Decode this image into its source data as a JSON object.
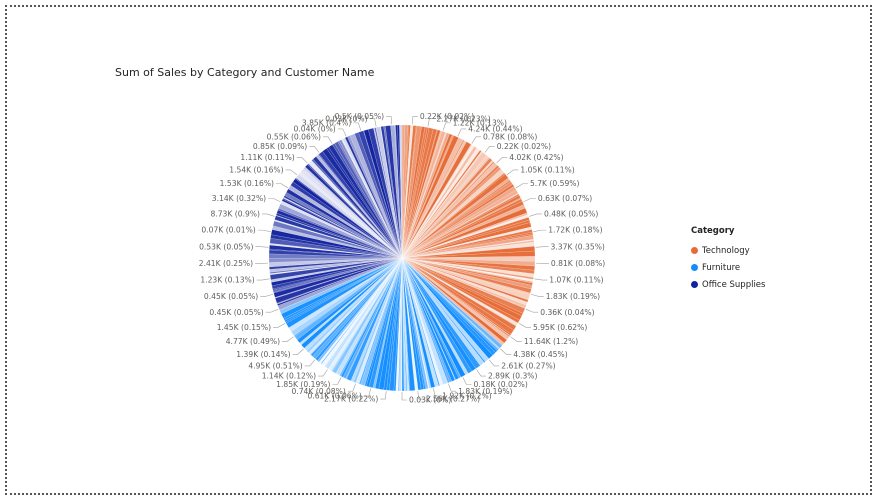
{
  "chart_data": {
    "type": "pie",
    "title": "Sum of Sales by Category and Customer Name",
    "legend": {
      "title": "Category",
      "placement": "right",
      "entries": [
        {
          "name": "Technology",
          "color": "#E66C37"
        },
        {
          "name": "Furniture",
          "color": "#118DFF"
        },
        {
          "name": "Office Supplies",
          "color": "#12239E"
        }
      ]
    },
    "category_shares": [
      {
        "category": "Technology",
        "percent": 36.4
      },
      {
        "category": "Furniture",
        "percent": 32.2
      },
      {
        "category": "Office Supplies",
        "percent": 31.4
      }
    ],
    "slice_labels": [
      {
        "category": "Technology",
        "value": "0.22K",
        "percent": "0.02%",
        "text": "0.22K (0.02%)"
      },
      {
        "category": "Technology",
        "value": "2.27K",
        "percent": "0.23%",
        "text": "2.27K (0.23%)"
      },
      {
        "category": "Technology",
        "value": "1.22K",
        "percent": "0.13%",
        "text": "1.22K (0.13%)"
      },
      {
        "category": "Technology",
        "value": "4.24K",
        "percent": "0.44%",
        "text": "4.24K (0.44%)"
      },
      {
        "category": "Technology",
        "value": "0.78K",
        "percent": "0.08%",
        "text": "0.78K (0.08%)"
      },
      {
        "category": "Technology",
        "value": "0.22K",
        "percent": "0.02%",
        "text": "0.22K (0.02%)"
      },
      {
        "category": "Technology",
        "value": "4.02K",
        "percent": "0.42%",
        "text": "4.02K (0.42%)"
      },
      {
        "category": "Technology",
        "value": "1.05K",
        "percent": "0.11%",
        "text": "1.05K (0.11%)"
      },
      {
        "category": "Technology",
        "value": "5.7K",
        "percent": "0.59%",
        "text": "5.7K (0.59%)"
      },
      {
        "category": "Technology",
        "value": "0.63K",
        "percent": "0.07%",
        "text": "0.63K (0.07%)"
      },
      {
        "category": "Technology",
        "value": "0.48K",
        "percent": "0.05%",
        "text": "0.48K (0.05%)"
      },
      {
        "category": "Technology",
        "value": "1.72K",
        "percent": "0.18%",
        "text": "1.72K (0.18%)"
      },
      {
        "category": "Technology",
        "value": "3.37K",
        "percent": "0.35%",
        "text": "3.37K (0.35%)"
      },
      {
        "category": "Technology",
        "value": "0.81K",
        "percent": "0.08%",
        "text": "0.81K (0.08%)"
      },
      {
        "category": "Technology",
        "value": "1.07K",
        "percent": "0.11%",
        "text": "1.07K (0.11%)"
      },
      {
        "category": "Technology",
        "value": "1.83K",
        "percent": "0.19%",
        "text": "1.83K (0.19%)"
      },
      {
        "category": "Technology",
        "value": "0.36K",
        "percent": "0.04%",
        "text": "0.36K (0.04%)"
      },
      {
        "category": "Technology",
        "value": "5.95K",
        "percent": "0.62%",
        "text": "5.95K (0.62%)"
      },
      {
        "category": "Technology",
        "value": "11.64K",
        "percent": "1.2%",
        "text": "11.64K (1.2%)"
      },
      {
        "category": "Furniture",
        "value": "4.38K",
        "percent": "0.45%",
        "text": "4.38K (0.45%)"
      },
      {
        "category": "Furniture",
        "value": "2.61K",
        "percent": "0.27%",
        "text": "2.61K (0.27%)"
      },
      {
        "category": "Furniture",
        "value": "2.89K",
        "percent": "0.3%",
        "text": "2.89K (0.3%)"
      },
      {
        "category": "Furniture",
        "value": "0.18K",
        "percent": "0.02%",
        "text": "0.18K (0.02%)"
      },
      {
        "category": "Furniture",
        "value": "1.83K",
        "percent": "0.19%",
        "text": "1.83K (0.19%)"
      },
      {
        "category": "Furniture",
        "value": "1.92K",
        "percent": "0.2%",
        "text": "1.92K (0.2%)"
      },
      {
        "category": "Furniture",
        "value": "2.56K",
        "percent": "0.27%",
        "text": "2.56K (0.27%)"
      },
      {
        "category": "Furniture",
        "value": "0.03K",
        "percent": "0%",
        "text": "0.03K (0%)"
      },
      {
        "category": "Furniture",
        "value": "2.17K",
        "percent": "0.22%",
        "text": "2.17K (0.22%)"
      },
      {
        "category": "Furniture",
        "value": "0.61K",
        "percent": "0.06%",
        "text": "0.61K (0.06%)"
      },
      {
        "category": "Furniture",
        "value": "0.74K",
        "percent": "0.08%",
        "text": "0.74K (0.08%)"
      },
      {
        "category": "Furniture",
        "value": "1.85K",
        "percent": "0.19%",
        "text": "1.85K (0.19%)"
      },
      {
        "category": "Furniture",
        "value": "1.14K",
        "percent": "0.12%",
        "text": "1.14K (0.12%)"
      },
      {
        "category": "Office Supplies",
        "value": "4.95K",
        "percent": "0.51%",
        "text": "4.95K (0.51%)"
      },
      {
        "category": "Office Supplies",
        "value": "1.39K",
        "percent": "0.14%",
        "text": "1.39K (0.14%)"
      },
      {
        "category": "Office Supplies",
        "value": "4.77K",
        "percent": "0.49%",
        "text": "4.77K (0.49%)"
      },
      {
        "category": "Office Supplies",
        "value": "1.45K",
        "percent": "0.15%",
        "text": "1.45K (0.15%)"
      },
      {
        "category": "Office Supplies",
        "value": "0.45K",
        "percent": "0.05%",
        "text": "0.45K (0.05%)"
      },
      {
        "category": "Office Supplies",
        "value": "0.45K",
        "percent": "0.05%",
        "text": "0.45K (0.05%)"
      },
      {
        "category": "Office Supplies",
        "value": "1.23K",
        "percent": "0.13%",
        "text": "1.23K (0.13%)"
      },
      {
        "category": "Office Supplies",
        "value": "2.41K",
        "percent": "0.25%",
        "text": "2.41K (0.25%)"
      },
      {
        "category": "Office Supplies",
        "value": "0.53K",
        "percent": "0.05%",
        "text": "0.53K (0.05%)"
      },
      {
        "category": "Office Supplies",
        "value": "0.07K",
        "percent": "0.01%",
        "text": "0.07K (0.01%)"
      },
      {
        "category": "Office Supplies",
        "value": "8.73K",
        "percent": "0.9%",
        "text": "8.73K (0.9%)"
      },
      {
        "category": "Office Supplies",
        "value": "3.14K",
        "percent": "0.32%",
        "text": "3.14K (0.32%)"
      },
      {
        "category": "Office Supplies",
        "value": "1.53K",
        "percent": "0.16%",
        "text": "1.53K (0.16%)"
      },
      {
        "category": "Office Supplies",
        "value": "1.54K",
        "percent": "0.16%",
        "text": "1.54K (0.16%)"
      },
      {
        "category": "Office Supplies",
        "value": "1.11K",
        "percent": "0.11%",
        "text": "1.11K (0.11%)"
      },
      {
        "category": "Office Supplies",
        "value": "0.85K",
        "percent": "0.09%",
        "text": "0.85K (0.09%)"
      },
      {
        "category": "Office Supplies",
        "value": "0.55K",
        "percent": "0.06%",
        "text": "0.55K (0.06%)"
      },
      {
        "category": "Office Supplies",
        "value": "0.04K",
        "percent": "0%",
        "text": "0.04K (0%)"
      },
      {
        "category": "Office Supplies",
        "value": "3.85K",
        "percent": "0.4%",
        "text": "3.85K (0.4%)"
      },
      {
        "category": "Office Supplies",
        "value": "0.03K",
        "percent": "0%",
        "text": "0.03K (0%)"
      },
      {
        "category": "Office Supplies",
        "value": "0.5K",
        "percent": "0.05%",
        "text": "0.5K (0.05%)"
      }
    ]
  }
}
